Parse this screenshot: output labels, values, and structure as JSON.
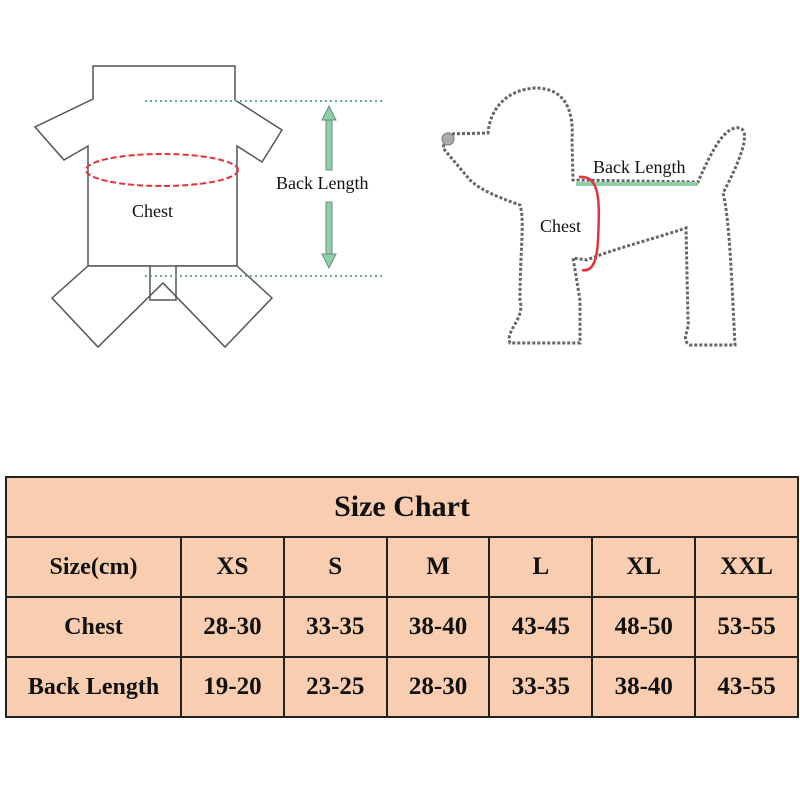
{
  "garment_diagram": {
    "chest_label": "Chest",
    "back_length_label": "Back Length"
  },
  "dog_diagram": {
    "chest_label": "Chest",
    "back_length_label": "Back Length"
  },
  "colors": {
    "chest_marker": "#e8303a",
    "back_length_marker": "#8fcfa8",
    "table_background": "#f8cdb0"
  },
  "size_chart": {
    "title": "Size Chart",
    "header": [
      "Size(cm)",
      "XS",
      "S",
      "M",
      "L",
      "XL",
      "XXL"
    ],
    "rows": [
      [
        "Chest",
        "28-30",
        "33-35",
        "38-40",
        "43-45",
        "48-50",
        "53-55"
      ],
      [
        "Back Length",
        "19-20",
        "23-25",
        "28-30",
        "33-35",
        "38-40",
        "43-55"
      ]
    ]
  }
}
